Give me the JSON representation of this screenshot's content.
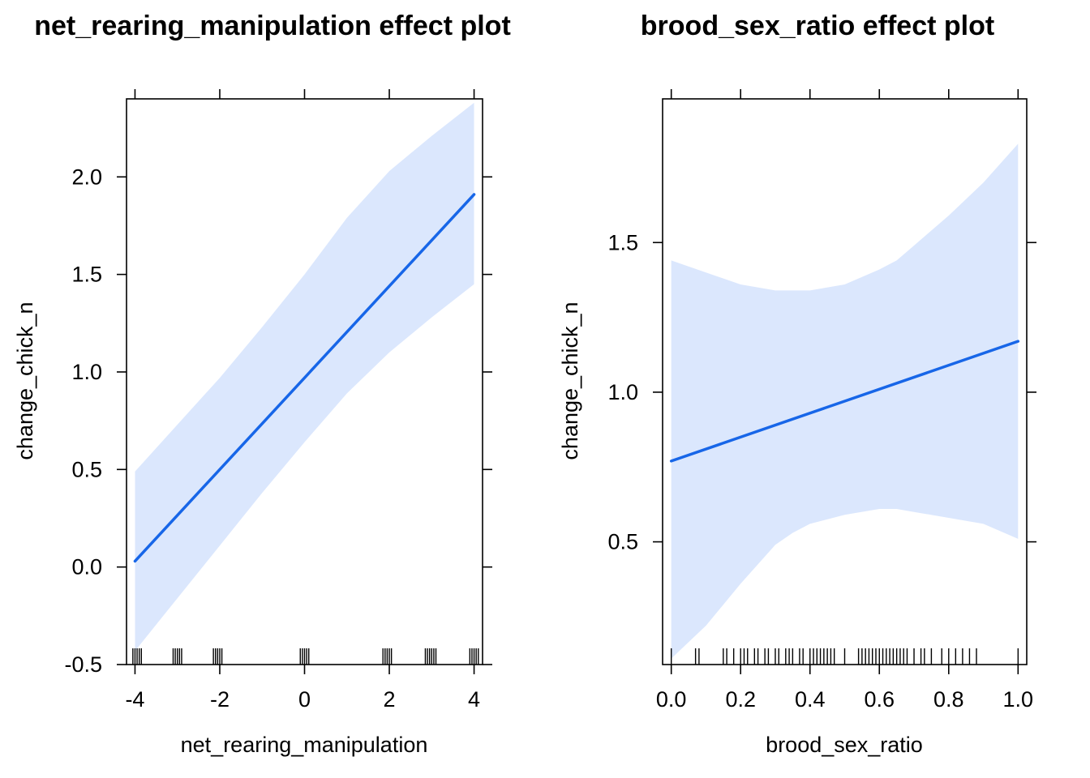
{
  "chart_data": [
    {
      "type": "line",
      "title": "net_rearing_manipulation effect plot",
      "xlabel": "net_rearing_manipulation",
      "ylabel": "change_chick_n",
      "xlim": [
        -4.2,
        4.2
      ],
      "ylim": [
        -0.5,
        2.4
      ],
      "x_ticks": [
        -4,
        -2,
        0,
        2,
        4
      ],
      "x_tick_labels": [
        "-4",
        "-2",
        "0",
        "2",
        "4"
      ],
      "y_ticks": [
        -0.5,
        0.0,
        0.5,
        1.0,
        1.5,
        2.0
      ],
      "y_tick_labels": [
        "-0.5",
        "0.0",
        "0.5",
        "1.0",
        "1.5",
        "2.0"
      ],
      "fit": {
        "x": [
          -4,
          4
        ],
        "y": [
          0.03,
          1.91
        ]
      },
      "confidence_band": {
        "x": [
          -4,
          -3,
          -2,
          -1,
          0,
          1,
          2,
          3,
          4
        ],
        "lower": [
          -0.43,
          -0.16,
          0.11,
          0.38,
          0.64,
          0.89,
          1.1,
          1.28,
          1.45
        ],
        "upper": [
          0.49,
          0.73,
          0.97,
          1.23,
          1.5,
          1.79,
          2.03,
          2.21,
          2.38
        ]
      },
      "rug": [
        -4.05,
        -4.0,
        -3.95,
        -3.9,
        -3.85,
        -3.1,
        -3.05,
        -3.0,
        -2.95,
        -2.9,
        -2.15,
        -2.1,
        -2.05,
        -2.0,
        -1.95,
        -0.1,
        -0.05,
        0.0,
        0.05,
        0.1,
        1.85,
        1.9,
        1.95,
        2.0,
        2.05,
        2.85,
        2.9,
        2.95,
        3.0,
        3.05,
        3.1,
        3.9,
        3.95,
        4.0,
        4.05,
        4.1
      ],
      "grid": false,
      "colors": {
        "line": "#1766e8",
        "band": "#dbe7fd"
      }
    },
    {
      "type": "line",
      "title": "brood_sex_ratio effect plot",
      "xlabel": "brood_sex_ratio",
      "ylabel": "change_chick_n",
      "xlim": [
        -0.025,
        1.025
      ],
      "ylim": [
        0.09,
        1.98
      ],
      "x_ticks": [
        0.0,
        0.2,
        0.4,
        0.6,
        0.8,
        1.0
      ],
      "x_tick_labels": [
        "0.0",
        "0.2",
        "0.4",
        "0.6",
        "0.8",
        "1.0"
      ],
      "y_ticks": [
        0.5,
        1.0,
        1.5
      ],
      "y_tick_labels": [
        "0.5",
        "1.0",
        "1.5"
      ],
      "fit": {
        "x": [
          0,
          1
        ],
        "y": [
          0.77,
          1.17
        ]
      },
      "confidence_band": {
        "x": [
          0.0,
          0.1,
          0.2,
          0.3,
          0.35,
          0.4,
          0.5,
          0.6,
          0.65,
          0.7,
          0.8,
          0.9,
          1.0
        ],
        "lower": [
          0.11,
          0.22,
          0.36,
          0.49,
          0.53,
          0.56,
          0.59,
          0.61,
          0.61,
          0.6,
          0.58,
          0.56,
          0.51
        ],
        "upper": [
          1.44,
          1.4,
          1.36,
          1.34,
          1.34,
          1.34,
          1.36,
          1.41,
          1.44,
          1.49,
          1.59,
          1.7,
          1.83
        ]
      },
      "rug": [
        0.0,
        0.07,
        0.08,
        0.15,
        0.16,
        0.18,
        0.2,
        0.21,
        0.22,
        0.24,
        0.25,
        0.27,
        0.28,
        0.3,
        0.31,
        0.33,
        0.34,
        0.35,
        0.37,
        0.38,
        0.4,
        0.41,
        0.42,
        0.43,
        0.44,
        0.45,
        0.46,
        0.47,
        0.5,
        0.54,
        0.55,
        0.56,
        0.57,
        0.58,
        0.59,
        0.6,
        0.61,
        0.62,
        0.63,
        0.64,
        0.65,
        0.66,
        0.67,
        0.68,
        0.7,
        0.72,
        0.73,
        0.75,
        0.78,
        0.8,
        0.82,
        0.84,
        0.86,
        0.88,
        1.0
      ],
      "grid": false,
      "colors": {
        "line": "#1766e8",
        "band": "#dbe7fd"
      }
    }
  ]
}
